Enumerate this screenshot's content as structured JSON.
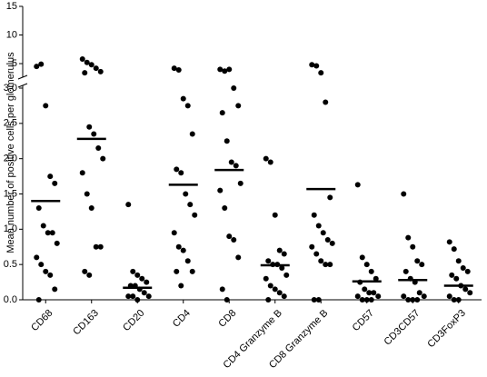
{
  "chart_data": {
    "type": "dot",
    "y_label": "Mean number of positive cells per glomerulus",
    "categories": [
      "CD68",
      "CD163",
      "CD20",
      "CD4",
      "CD8",
      "CD4 Granzyme B",
      "CD8 Granzyme B",
      "CD57",
      "CD3CD57",
      "CD3FoxP3"
    ],
    "values": [
      [
        4.5,
        4.9,
        2.75,
        1.75,
        1.65,
        1.3,
        1.05,
        0.95,
        0.95,
        0.8,
        0.6,
        0.5,
        0.4,
        0.35,
        0.15,
        0.0
      ],
      [
        5.8,
        5.2,
        4.8,
        4.2,
        3.6,
        3.4,
        2.45,
        2.35,
        2.15,
        2.0,
        1.8,
        1.5,
        1.3,
        0.75,
        0.75,
        0.4,
        0.35
      ],
      [
        1.35,
        0.4,
        0.35,
        0.3,
        0.25,
        0.2,
        0.2,
        0.15,
        0.1,
        0.05,
        0.05,
        0.05,
        0.0
      ],
      [
        4.2,
        3.9,
        2.85,
        2.75,
        2.35,
        1.85,
        1.8,
        1.5,
        1.35,
        1.2,
        0.95,
        0.75,
        0.7,
        0.55,
        0.4,
        0.4,
        0.2
      ],
      [
        4.0,
        3.7,
        4.0,
        3.0,
        2.75,
        2.65,
        2.25,
        1.95,
        1.9,
        1.65,
        1.55,
        1.3,
        0.9,
        0.85,
        0.6,
        0.15,
        0.0
      ],
      [
        2.0,
        1.95,
        1.2,
        0.7,
        0.65,
        0.55,
        0.5,
        0.5,
        0.45,
        0.35,
        0.3,
        0.2,
        0.15,
        0.1,
        0.05,
        0.0
      ],
      [
        4.8,
        4.6,
        3.4,
        2.8,
        1.45,
        1.2,
        1.05,
        0.95,
        0.85,
        0.8,
        0.75,
        0.65,
        0.55,
        0.5,
        0.5,
        0.0,
        0.0
      ],
      [
        1.63,
        0.6,
        0.5,
        0.4,
        0.3,
        0.25,
        0.15,
        0.1,
        0.1,
        0.05,
        0.05,
        0.0,
        0.0,
        0.0
      ],
      [
        1.5,
        0.88,
        0.75,
        0.55,
        0.5,
        0.4,
        0.3,
        0.25,
        0.1,
        0.05,
        0.05,
        0.0,
        0.0,
        0.0
      ],
      [
        0.82,
        0.72,
        0.55,
        0.45,
        0.4,
        0.35,
        0.3,
        0.2,
        0.15,
        0.1,
        0.05,
        0.0,
        0.0
      ]
    ],
    "means": [
      1.4,
      2.28,
      0.17,
      1.63,
      1.84,
      0.49,
      1.57,
      0.26,
      0.28,
      0.2
    ],
    "color": "#000000",
    "ylim": [
      0,
      3
    ],
    "yticks": [
      {
        "value": 0,
        "label": "0.0"
      },
      0.5,
      {
        "value": 1,
        "label": "1.0"
      },
      1.5,
      {
        "value": 2,
        "label": "2.0"
      },
      2.5,
      {
        "value": 3,
        "label": "3.0"
      }
    ],
    "upper_ylim": [
      3.1,
      15
    ],
    "upper_yticks": [
      5,
      10,
      15
    ]
  }
}
